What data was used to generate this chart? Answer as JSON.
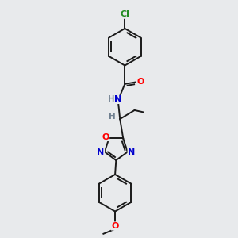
{
  "background_color": "#e8eaec",
  "bond_color": "#1a1a1a",
  "atom_colors": {
    "Cl": "#228B22",
    "O": "#ff0000",
    "N": "#0000cd",
    "H": "#708090",
    "C": "#1a1a1a"
  },
  "fig_width": 3.0,
  "fig_height": 3.0,
  "dpi": 100,
  "lw": 1.4,
  "fs": 7.5
}
